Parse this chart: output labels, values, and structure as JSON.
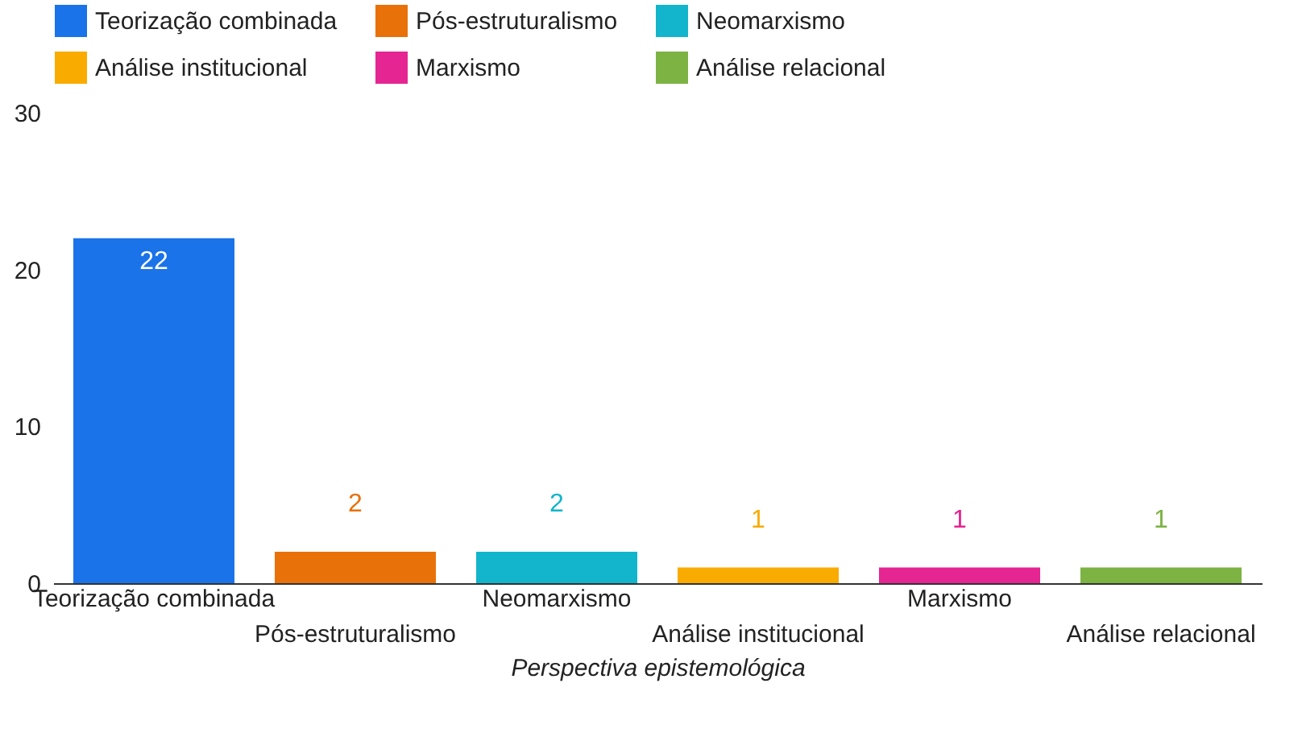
{
  "chart_data": {
    "type": "bar",
    "xlabel": "Perspectiva epistemológica",
    "categories": [
      "Teorização combinada",
      "Pós-estruturalismo",
      "Neomarxismo",
      "Análise institucional",
      "Marxismo",
      "Análise relacional"
    ],
    "series": [
      {
        "name": "Teorização combinada",
        "color": "#1a73e8",
        "values": [
          22,
          null,
          null,
          null,
          null,
          null
        ]
      },
      {
        "name": "Pós-estruturalismo",
        "color": "#e8710a",
        "values": [
          null,
          2,
          null,
          null,
          null,
          null
        ]
      },
      {
        "name": "Neomarxismo",
        "color": "#12b5cb",
        "values": [
          null,
          null,
          2,
          null,
          null,
          null
        ]
      },
      {
        "name": "Análise institucional",
        "color": "#f9ab00",
        "values": [
          null,
          null,
          null,
          1,
          null,
          null
        ]
      },
      {
        "name": "Marxismo",
        "color": "#e52592",
        "values": [
          null,
          null,
          null,
          null,
          1,
          null
        ]
      },
      {
        "name": "Análise relacional",
        "color": "#7cb342",
        "values": [
          null,
          null,
          null,
          null,
          null,
          1
        ]
      }
    ],
    "ylim": [
      0,
      30
    ],
    "yticks": [
      0,
      10,
      20,
      30
    ],
    "grid": false,
    "legend": "top",
    "data_labels": true
  }
}
